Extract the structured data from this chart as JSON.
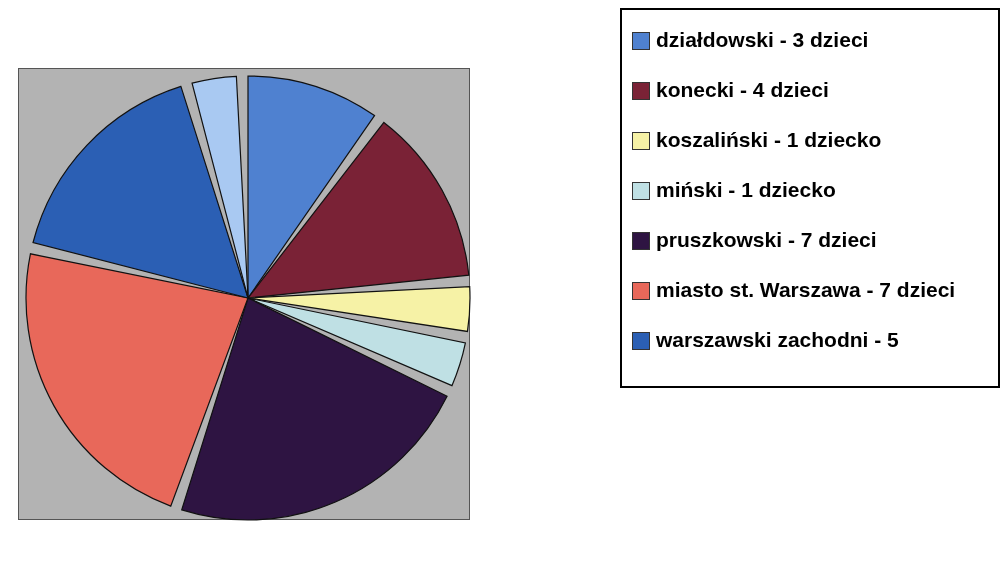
{
  "chart_data": {
    "type": "pie",
    "categories": [
      "działdowski - 3 dzieci",
      "konecki - 4 dzieci",
      "koszaliński - 1 dziecko",
      "miński - 1 dziecko",
      "pruszkowski - 7 dzieci",
      "miasto st. Warszawa - 7 dzieci",
      "warszawski zachodni - 5",
      null
    ],
    "values": [
      10.34,
      13.79,
      3.45,
      3.45,
      24.14,
      24.14,
      17.24,
      3.45
    ],
    "colors": [
      "#4f81d0",
      "#7a2236",
      "#f6f2a6",
      "#bfe0e4",
      "#2e1442",
      "#e8685a",
      "#2b5fb4",
      "#a9c9f2"
    ],
    "legend": "right"
  }
}
